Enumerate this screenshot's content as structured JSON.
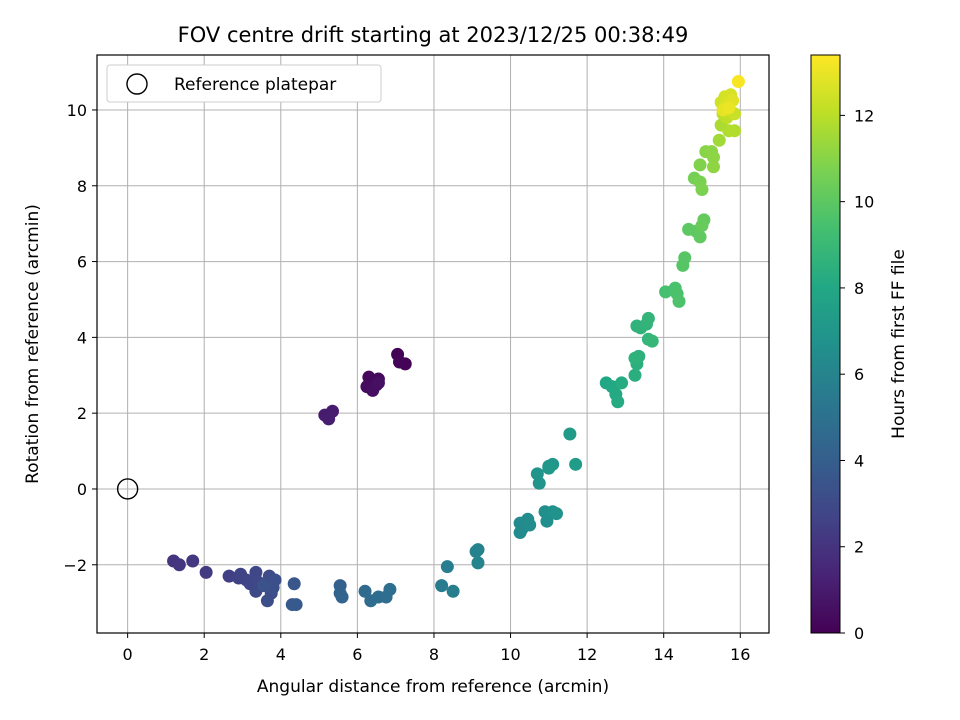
{
  "chart_data": {
    "type": "scatter",
    "title": "FOV centre drift starting at 2023/12/25 00:38:49",
    "xlabel": "Angular distance from reference (arcmin)",
    "ylabel": "Rotation from reference (arcmin)",
    "xlim": [
      -0.8,
      16.75
    ],
    "ylim": [
      -3.8,
      11.45
    ],
    "xticks": [
      0,
      2,
      4,
      6,
      8,
      10,
      12,
      14,
      16
    ],
    "yticks": [
      -2,
      0,
      2,
      4,
      6,
      8,
      10
    ],
    "grid": true,
    "legend": {
      "placement": "top-left",
      "entries": [
        "Reference platepar"
      ]
    },
    "reference_point": {
      "x": 0,
      "y": 0,
      "label": "Reference platepar"
    },
    "colorbar": {
      "label": "Hours from first FF file",
      "colormap": "viridis",
      "range": [
        0,
        13.4
      ],
      "ticks": [
        0,
        2,
        4,
        6,
        8,
        10,
        12
      ]
    },
    "points": [
      {
        "x": 7.05,
        "y": 3.55,
        "c": 0.05
      },
      {
        "x": 7.25,
        "y": 3.3,
        "c": 0.1
      },
      {
        "x": 7.1,
        "y": 3.35,
        "c": 0.15
      },
      {
        "x": 6.3,
        "y": 2.95,
        "c": 0.25
      },
      {
        "x": 6.55,
        "y": 2.9,
        "c": 0.3
      },
      {
        "x": 6.4,
        "y": 2.75,
        "c": 0.35
      },
      {
        "x": 6.25,
        "y": 2.7,
        "c": 0.4
      },
      {
        "x": 6.5,
        "y": 2.75,
        "c": 0.45
      },
      {
        "x": 6.4,
        "y": 2.6,
        "c": 0.5
      },
      {
        "x": 6.55,
        "y": 2.8,
        "c": 0.55
      },
      {
        "x": 5.35,
        "y": 2.05,
        "c": 1.0
      },
      {
        "x": 5.15,
        "y": 1.95,
        "c": 1.05
      },
      {
        "x": 5.25,
        "y": 1.85,
        "c": 1.1
      },
      {
        "x": 1.2,
        "y": -1.9,
        "c": 2.0
      },
      {
        "x": 1.35,
        "y": -2.0,
        "c": 2.1
      },
      {
        "x": 1.7,
        "y": -1.9,
        "c": 2.2
      },
      {
        "x": 2.05,
        "y": -2.2,
        "c": 2.3
      },
      {
        "x": 2.65,
        "y": -2.3,
        "c": 2.5
      },
      {
        "x": 2.9,
        "y": -2.35,
        "c": 2.6
      },
      {
        "x": 2.95,
        "y": -2.25,
        "c": 2.65
      },
      {
        "x": 3.1,
        "y": -2.4,
        "c": 2.7
      },
      {
        "x": 3.2,
        "y": -2.5,
        "c": 2.8
      },
      {
        "x": 3.35,
        "y": -2.2,
        "c": 2.85
      },
      {
        "x": 3.4,
        "y": -2.45,
        "c": 2.9
      },
      {
        "x": 3.45,
        "y": -2.55,
        "c": 2.95
      },
      {
        "x": 3.35,
        "y": -2.7,
        "c": 3.0
      },
      {
        "x": 3.6,
        "y": -2.5,
        "c": 3.05
      },
      {
        "x": 3.7,
        "y": -2.3,
        "c": 3.1
      },
      {
        "x": 3.75,
        "y": -2.75,
        "c": 3.15
      },
      {
        "x": 3.65,
        "y": -2.95,
        "c": 3.2
      },
      {
        "x": 3.85,
        "y": -2.4,
        "c": 3.25
      },
      {
        "x": 3.8,
        "y": -2.6,
        "c": 3.3
      },
      {
        "x": 3.55,
        "y": -2.55,
        "c": 3.35
      },
      {
        "x": 4.35,
        "y": -2.5,
        "c": 3.6
      },
      {
        "x": 4.3,
        "y": -3.05,
        "c": 3.7
      },
      {
        "x": 4.4,
        "y": -3.05,
        "c": 3.75
      },
      {
        "x": 5.55,
        "y": -2.55,
        "c": 4.2
      },
      {
        "x": 5.55,
        "y": -2.75,
        "c": 4.25
      },
      {
        "x": 5.6,
        "y": -2.85,
        "c": 4.3
      },
      {
        "x": 6.2,
        "y": -2.7,
        "c": 4.6
      },
      {
        "x": 6.35,
        "y": -2.95,
        "c": 4.7
      },
      {
        "x": 6.55,
        "y": -2.85,
        "c": 4.75
      },
      {
        "x": 6.75,
        "y": -2.85,
        "c": 4.8
      },
      {
        "x": 6.85,
        "y": -2.65,
        "c": 4.85
      },
      {
        "x": 8.2,
        "y": -2.55,
        "c": 5.6
      },
      {
        "x": 8.35,
        "y": -2.05,
        "c": 5.65
      },
      {
        "x": 8.5,
        "y": -2.7,
        "c": 5.7
      },
      {
        "x": 9.15,
        "y": -1.6,
        "c": 5.9
      },
      {
        "x": 9.1,
        "y": -1.65,
        "c": 5.95
      },
      {
        "x": 9.15,
        "y": -1.95,
        "c": 6.0
      },
      {
        "x": 10.25,
        "y": -0.9,
        "c": 6.3
      },
      {
        "x": 10.3,
        "y": -1.05,
        "c": 6.35
      },
      {
        "x": 10.25,
        "y": -1.15,
        "c": 6.4
      },
      {
        "x": 10.45,
        "y": -0.8,
        "c": 6.45
      },
      {
        "x": 10.5,
        "y": -0.95,
        "c": 6.5
      },
      {
        "x": 10.9,
        "y": -0.6,
        "c": 6.6
      },
      {
        "x": 10.95,
        "y": -0.85,
        "c": 6.65
      },
      {
        "x": 11.1,
        "y": -0.6,
        "c": 6.7
      },
      {
        "x": 11.2,
        "y": -0.65,
        "c": 6.75
      },
      {
        "x": 10.7,
        "y": 0.4,
        "c": 6.9
      },
      {
        "x": 10.75,
        "y": 0.15,
        "c": 6.95
      },
      {
        "x": 11.0,
        "y": 0.6,
        "c": 7.0
      },
      {
        "x": 11.1,
        "y": 0.65,
        "c": 7.05
      },
      {
        "x": 11.0,
        "y": 0.55,
        "c": 7.1
      },
      {
        "x": 11.55,
        "y": 1.45,
        "c": 7.3
      },
      {
        "x": 11.7,
        "y": 0.65,
        "c": 7.35
      },
      {
        "x": 12.5,
        "y": 2.8,
        "c": 8.0
      },
      {
        "x": 12.65,
        "y": 2.7,
        "c": 8.05
      },
      {
        "x": 12.75,
        "y": 2.5,
        "c": 8.1
      },
      {
        "x": 12.8,
        "y": 2.3,
        "c": 8.15
      },
      {
        "x": 12.9,
        "y": 2.8,
        "c": 8.2
      },
      {
        "x": 13.25,
        "y": 3.0,
        "c": 8.4
      },
      {
        "x": 13.3,
        "y": 3.3,
        "c": 8.45
      },
      {
        "x": 13.35,
        "y": 3.5,
        "c": 8.5
      },
      {
        "x": 13.25,
        "y": 3.45,
        "c": 8.55
      },
      {
        "x": 13.3,
        "y": 4.3,
        "c": 8.6
      },
      {
        "x": 13.4,
        "y": 4.25,
        "c": 8.65
      },
      {
        "x": 13.55,
        "y": 4.35,
        "c": 8.7
      },
      {
        "x": 13.6,
        "y": 4.5,
        "c": 8.75
      },
      {
        "x": 13.6,
        "y": 3.95,
        "c": 8.8
      },
      {
        "x": 13.7,
        "y": 3.9,
        "c": 8.85
      },
      {
        "x": 14.05,
        "y": 5.2,
        "c": 9.4
      },
      {
        "x": 14.3,
        "y": 5.3,
        "c": 9.5
      },
      {
        "x": 14.35,
        "y": 5.15,
        "c": 9.55
      },
      {
        "x": 14.4,
        "y": 4.95,
        "c": 9.6
      },
      {
        "x": 14.5,
        "y": 5.9,
        "c": 9.8
      },
      {
        "x": 14.55,
        "y": 6.1,
        "c": 9.85
      },
      {
        "x": 14.65,
        "y": 6.85,
        "c": 10.0
      },
      {
        "x": 14.85,
        "y": 6.8,
        "c": 10.05
      },
      {
        "x": 14.95,
        "y": 6.65,
        "c": 10.1
      },
      {
        "x": 15.05,
        "y": 7.1,
        "c": 10.2
      },
      {
        "x": 15.0,
        "y": 6.95,
        "c": 10.25
      },
      {
        "x": 14.8,
        "y": 8.2,
        "c": 10.6
      },
      {
        "x": 14.95,
        "y": 8.1,
        "c": 10.7
      },
      {
        "x": 15.0,
        "y": 7.9,
        "c": 10.75
      },
      {
        "x": 14.95,
        "y": 8.55,
        "c": 10.85
      },
      {
        "x": 15.1,
        "y": 8.9,
        "c": 11.0
      },
      {
        "x": 15.25,
        "y": 8.9,
        "c": 11.05
      },
      {
        "x": 15.3,
        "y": 8.75,
        "c": 11.1
      },
      {
        "x": 15.3,
        "y": 8.5,
        "c": 11.15
      },
      {
        "x": 15.45,
        "y": 9.2,
        "c": 11.5
      },
      {
        "x": 15.5,
        "y": 9.6,
        "c": 11.7
      },
      {
        "x": 15.7,
        "y": 9.45,
        "c": 11.8
      },
      {
        "x": 15.85,
        "y": 9.45,
        "c": 11.85
      },
      {
        "x": 15.55,
        "y": 9.9,
        "c": 12.0
      },
      {
        "x": 15.65,
        "y": 9.8,
        "c": 12.1
      },
      {
        "x": 15.75,
        "y": 9.95,
        "c": 12.2
      },
      {
        "x": 15.85,
        "y": 9.9,
        "c": 12.3
      },
      {
        "x": 15.5,
        "y": 10.2,
        "c": 12.4
      },
      {
        "x": 15.6,
        "y": 10.35,
        "c": 12.5
      },
      {
        "x": 15.75,
        "y": 10.4,
        "c": 12.6
      },
      {
        "x": 15.65,
        "y": 10.15,
        "c": 12.7
      },
      {
        "x": 15.8,
        "y": 10.25,
        "c": 12.8
      },
      {
        "x": 15.55,
        "y": 10.0,
        "c": 12.9
      },
      {
        "x": 15.7,
        "y": 10.05,
        "c": 13.0
      },
      {
        "x": 15.95,
        "y": 10.75,
        "c": 13.3
      }
    ]
  }
}
